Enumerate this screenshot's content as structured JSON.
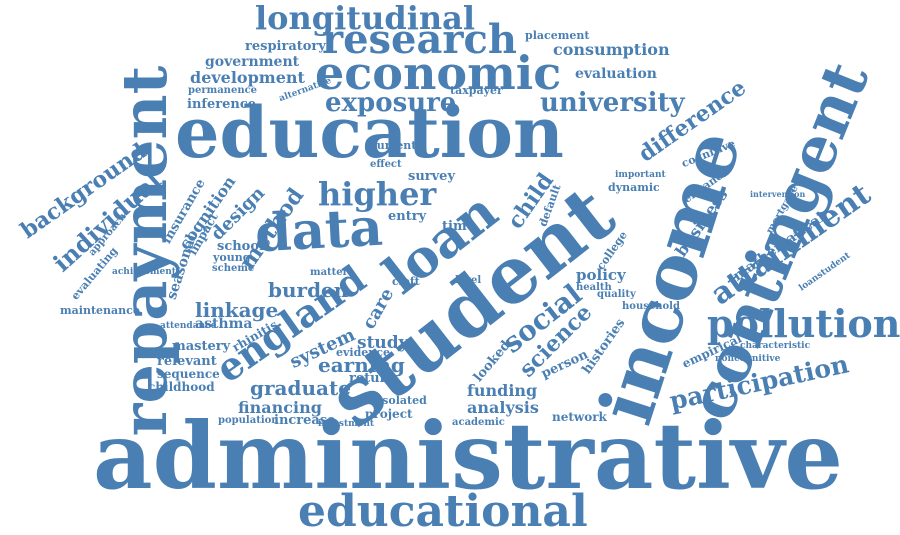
{
  "colors": {
    "text": "#4a7fb3",
    "background": "#ffffff"
  },
  "words": [
    "administrative",
    "student",
    "income",
    "education",
    "repayment",
    "contingent",
    "educational",
    "economic",
    "research",
    "data",
    "loan",
    "longitudinal",
    "pollution",
    "england",
    "attainment",
    "higher",
    "exposure",
    "university",
    "participation",
    "social",
    "science",
    "background",
    "difference",
    "individual",
    "child",
    "linkage",
    "burden",
    "earning",
    "method",
    "graduate",
    "financing",
    "funding",
    "analysis",
    "study",
    "system",
    "development",
    "government",
    "consumption",
    "evaluation",
    "respiratory",
    "placement",
    "inference",
    "cognition",
    "design",
    "asthma",
    "policy",
    "business",
    "mathematical",
    "childhood",
    "maintenance",
    "network",
    "project",
    "increase",
    "population",
    "empirical",
    "person",
    "histories",
    "mastery",
    "relevant",
    "sequence",
    "school",
    "seasonal",
    "insurance",
    "cognitive",
    "enhance",
    "household",
    "dynamic",
    "college",
    "quality",
    "health",
    "default",
    "survey",
    "entry",
    "time",
    "care",
    "cleft",
    "return",
    "evidence",
    "impact",
    "young",
    "scheme",
    "matter",
    "permanence",
    "alternative",
    "taxpayer",
    "current",
    "approach",
    "evaluating",
    "achievement",
    "rhinitis",
    "attendance",
    "academic",
    "investment",
    "isolated",
    "looked",
    "loanstudent",
    "noncognitive",
    "characteristic",
    "intervention",
    "important",
    "effect",
    "level",
    "mortgage"
  ]
}
